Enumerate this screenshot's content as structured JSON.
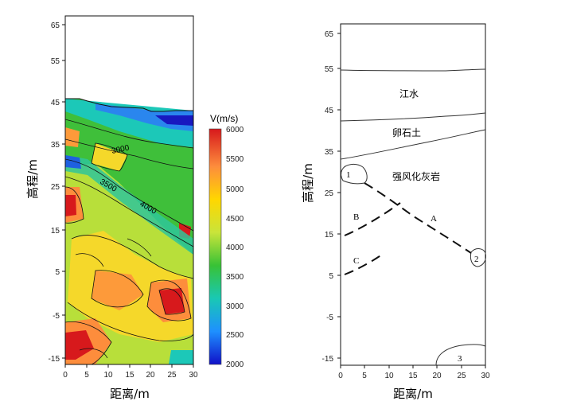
{
  "left_panel": {
    "xlabel": "距离/m",
    "ylabel": "高程/m",
    "x_ticks": [
      "0",
      "5",
      "10",
      "15",
      "20",
      "25",
      "30"
    ],
    "y_ticks": [
      "65",
      "55",
      "45",
      "35",
      "25",
      "15",
      "5",
      "-5",
      "-15"
    ],
    "contour_labels": [
      "3000",
      "3500",
      "4000"
    ],
    "colorbar": {
      "title": "V(m/s)",
      "ticks": [
        "6000",
        "5500",
        "5000",
        "4500",
        "4000",
        "3500",
        "3000",
        "2500",
        "2000"
      ],
      "colors": [
        "#d7191c",
        "#fd8d3c",
        "#ffd700",
        "#c9e43a",
        "#38c236",
        "#19c8b4",
        "#1e90ff",
        "#1010c8"
      ]
    }
  },
  "right_panel": {
    "xlabel": "距离/m",
    "ylabel": "高程/m",
    "x_ticks": [
      "0",
      "5",
      "10",
      "15",
      "20",
      "25",
      "30"
    ],
    "y_ticks": [
      "65",
      "55",
      "45",
      "35",
      "25",
      "15",
      "5",
      "-5",
      "-15"
    ],
    "zones": [
      "江水",
      "卵石土",
      "强风化灰岩"
    ],
    "feature_labels": [
      "1",
      "2",
      "3"
    ],
    "line_labels": [
      "A",
      "B",
      "C"
    ]
  }
}
